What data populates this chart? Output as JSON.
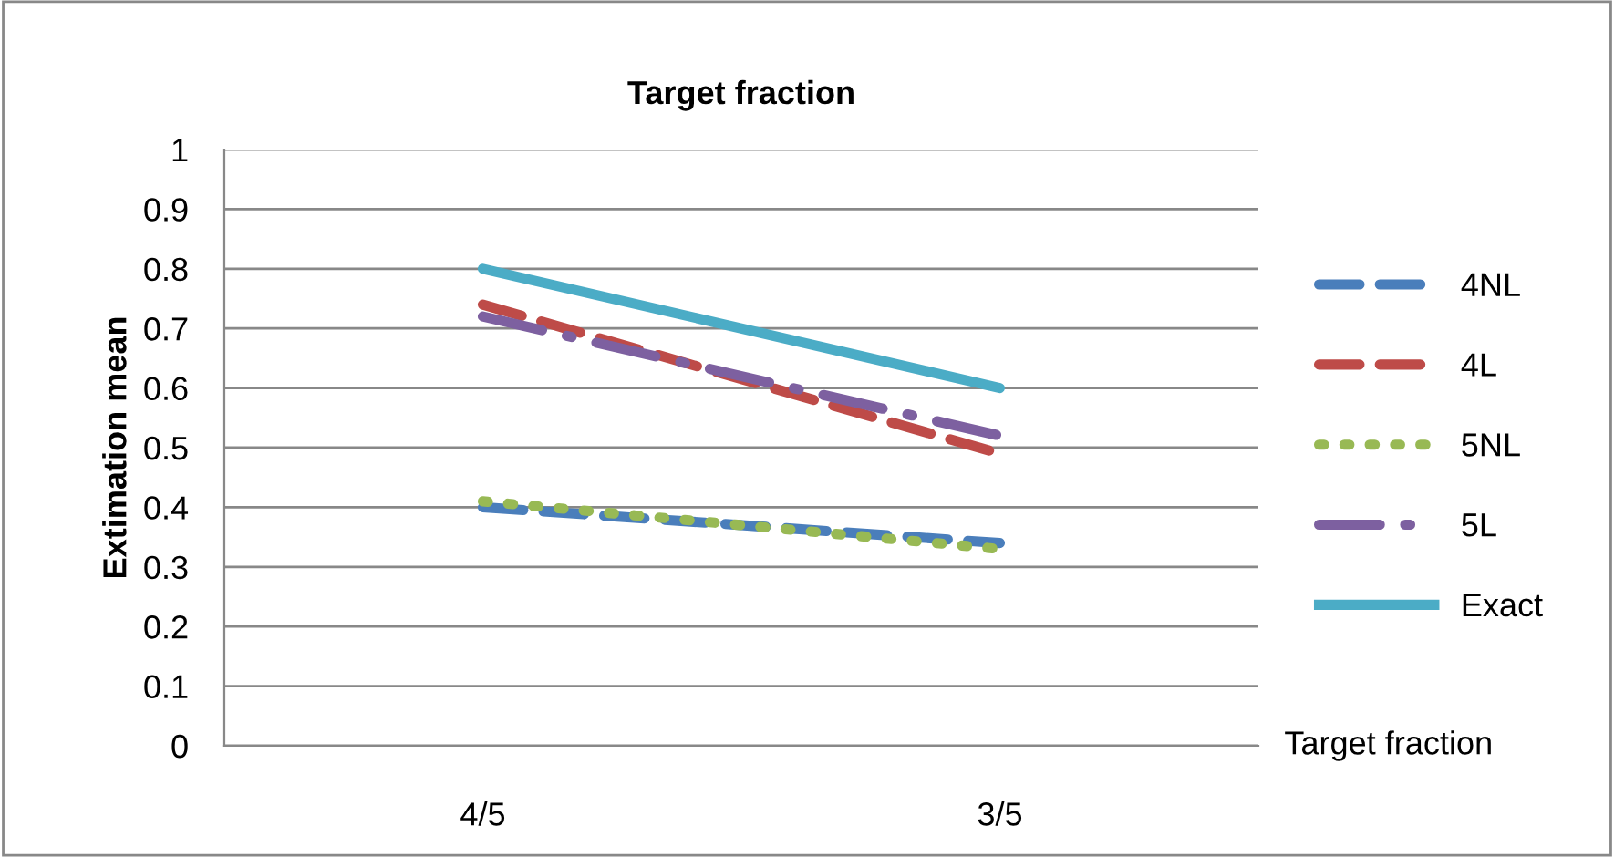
{
  "chart_data": {
    "type": "line",
    "title": "Target fraction",
    "xlabel": "Target fraction",
    "ylabel": "Extimation mean",
    "categories": [
      "4/5",
      "3/5"
    ],
    "series": [
      {
        "name": "4NL",
        "color": "#4a7ebb",
        "values": [
          0.4,
          0.34
        ],
        "line_style": "dashed"
      },
      {
        "name": "4L",
        "color": "#be4b48",
        "values": [
          0.74,
          0.49
        ],
        "line_style": "dashed"
      },
      {
        "name": "5NL",
        "color": "#98b954",
        "values": [
          0.41,
          0.33
        ],
        "line_style": "dotted"
      },
      {
        "name": "5L",
        "color": "#7d60a0",
        "values": [
          0.72,
          0.52
        ],
        "line_style": "dashdot"
      },
      {
        "name": "Exact",
        "color": "#4bacc6",
        "values": [
          0.8,
          0.6
        ],
        "line_style": "solid"
      }
    ],
    "ylim": [
      0,
      1
    ],
    "yticks": [
      0,
      0.1,
      0.2,
      0.3,
      0.4,
      0.5,
      0.6,
      0.7,
      0.8,
      0.9,
      1
    ],
    "grid": "y",
    "legend": "right",
    "marker": "none"
  }
}
